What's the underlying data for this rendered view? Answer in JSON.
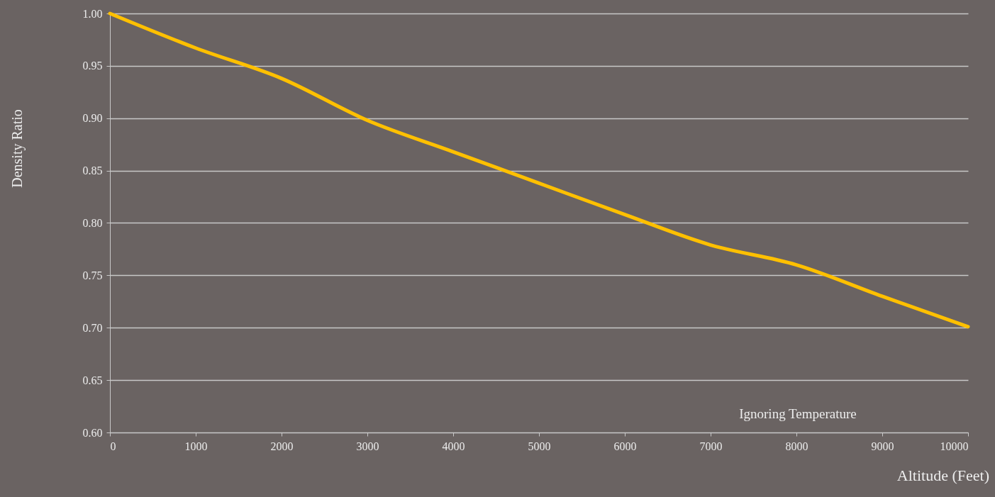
{
  "chart_data": {
    "type": "line",
    "xlabel": "Altitude (Feet)",
    "ylabel": "Density Ratio",
    "x": [
      0,
      1000,
      2000,
      3000,
      4000,
      5000,
      6000,
      7000,
      8000,
      9000,
      10000
    ],
    "series": [
      {
        "color": "#ffc000",
        "values": [
          1.0,
          0.967,
          0.938,
          0.898,
          0.868,
          0.838,
          0.808,
          0.779,
          0.76,
          0.73,
          0.701
        ]
      }
    ],
    "xlim": [
      0,
      10000
    ],
    "xticks": [
      0,
      1000,
      2000,
      3000,
      4000,
      5000,
      6000,
      7000,
      8000,
      9000,
      10000
    ],
    "ylim": [
      0.6,
      1.0
    ],
    "yticks": [
      {
        "value": 0.6,
        "label": "0.60"
      },
      {
        "value": 0.65,
        "label": "0.65"
      },
      {
        "value": 0.7,
        "label": "0.70"
      },
      {
        "value": 0.75,
        "label": "0.75"
      },
      {
        "value": 0.8,
        "label": "0.80"
      },
      {
        "value": 0.85,
        "label": "0.85"
      },
      {
        "value": 0.9,
        "label": "0.90"
      },
      {
        "value": 0.95,
        "label": "0.95"
      },
      {
        "value": 1.0,
        "label": "1.00"
      }
    ],
    "grid": "y",
    "line_style": "solid",
    "marker": "none",
    "annotations": [
      "Ignoring Temperature"
    ]
  }
}
